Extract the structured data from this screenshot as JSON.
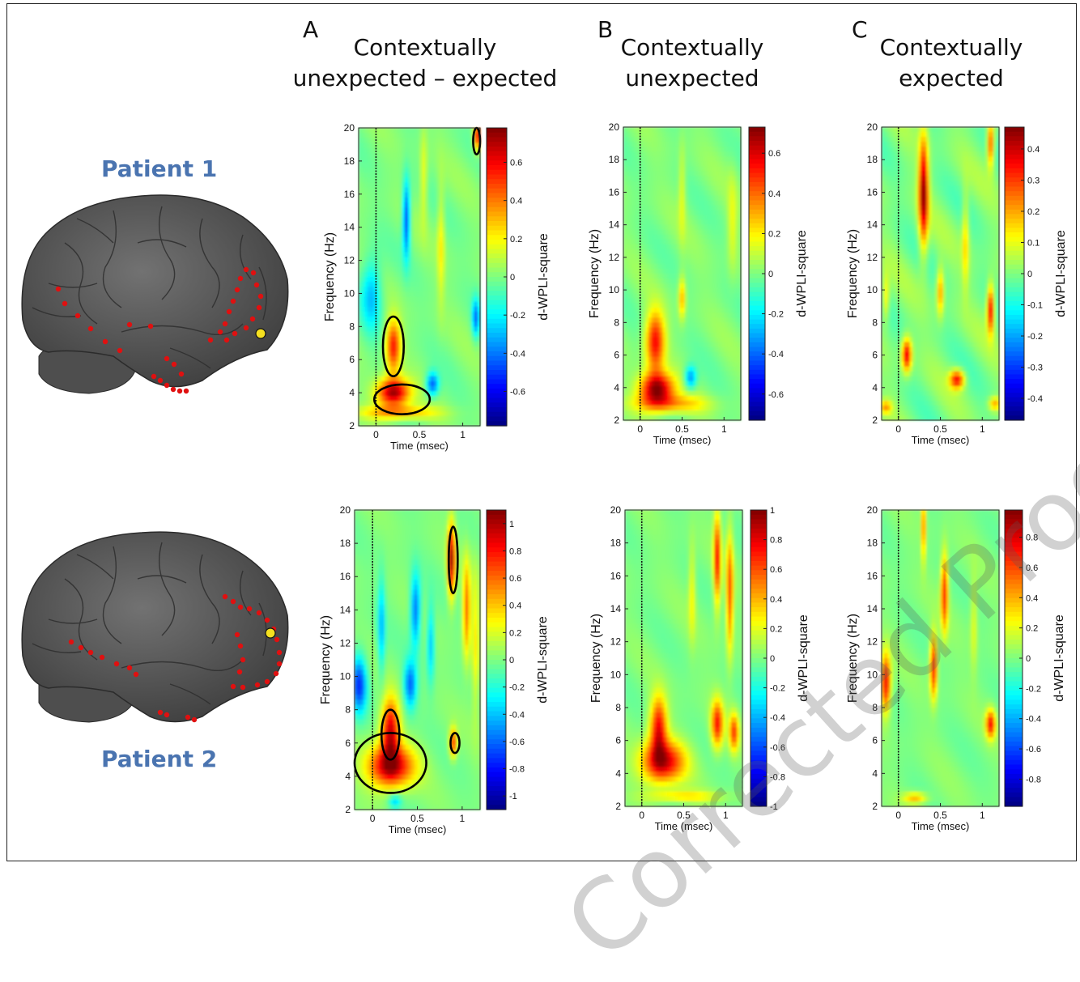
{
  "columns": [
    {
      "letter": "A",
      "title": "Contextually\nunexpected – expected"
    },
    {
      "letter": "B",
      "title": "Contextually\nunexpected"
    },
    {
      "letter": "C",
      "title": "Contextually\nexpected"
    }
  ],
  "patients": [
    "Patient 1",
    "Patient 2"
  ],
  "watermark": "Corrected Proof",
  "colors": {
    "patient_label": "#4a74b0",
    "electrode": "#e01010",
    "seed": "#f5e020",
    "brain": "#5a5a5a"
  },
  "chart_data": [
    {
      "type": "heatmap",
      "panel": "A1",
      "xlabel": "Time (msec)",
      "ylabel": "Frequency (Hz)",
      "colorbar_label": "d-WPLI-square",
      "xticks": [
        0,
        0.5,
        1
      ],
      "yticks": [
        2,
        4,
        6,
        8,
        10,
        12,
        14,
        16,
        18,
        20
      ],
      "xlim": [
        -0.2,
        1.2
      ],
      "ylim": [
        2,
        20
      ],
      "cbar_ticks": [
        0.6,
        0.4,
        0.2,
        0,
        -0.2,
        -0.4,
        -0.6
      ],
      "cbar_range": [
        -0.78,
        0.78
      ],
      "stimulus_line_x": 0,
      "blobs": [
        [
          0.2,
          4.0,
          0.13,
          0.6,
          0.75
        ],
        [
          0.2,
          6.8,
          0.06,
          1.1,
          0.55
        ],
        [
          0.25,
          2.8,
          0.3,
          0.3,
          0.35
        ],
        [
          0.35,
          14.5,
          0.03,
          1.6,
          -0.5
        ],
        [
          0.65,
          4.5,
          0.05,
          0.5,
          -0.45
        ],
        [
          1.15,
          8.5,
          0.03,
          0.8,
          -0.4
        ],
        [
          1.17,
          19.5,
          0.03,
          0.6,
          0.6
        ],
        [
          -0.05,
          10,
          0.08,
          1.5,
          -0.3
        ],
        [
          0.75,
          13,
          0.03,
          2.5,
          0.2
        ],
        [
          0.55,
          17,
          0.03,
          2.0,
          0.18
        ]
      ],
      "significant_clusters": [
        [
          0.3,
          3.6,
          0.32,
          0.9
        ],
        [
          0.2,
          6.8,
          0.12,
          1.8
        ],
        [
          1.16,
          19.2,
          0.04,
          0.8
        ]
      ]
    },
    {
      "type": "heatmap",
      "panel": "B1",
      "xlabel": "Time (msec)",
      "ylabel": "Frequency (Hz)",
      "colorbar_label": "d-WPLI-square",
      "xticks": [
        0,
        0.5,
        1
      ],
      "yticks": [
        2,
        4,
        6,
        8,
        10,
        12,
        14,
        16,
        18,
        20
      ],
      "xlim": [
        -0.2,
        1.2
      ],
      "ylim": [
        2,
        20
      ],
      "cbar_ticks": [
        0.6,
        0.4,
        0.2,
        0,
        -0.2,
        -0.4,
        -0.6
      ],
      "cbar_range": [
        -0.73,
        0.73
      ],
      "stimulus_line_x": 0,
      "blobs": [
        [
          0.2,
          3.9,
          0.14,
          0.7,
          0.72
        ],
        [
          0.18,
          6.8,
          0.08,
          1.3,
          0.55
        ],
        [
          0.5,
          9.5,
          0.03,
          0.9,
          0.3
        ],
        [
          0.6,
          4.6,
          0.05,
          0.5,
          -0.35
        ],
        [
          0.35,
          3.0,
          0.3,
          0.4,
          0.3
        ],
        [
          1.1,
          14,
          0.04,
          2.0,
          0.15
        ],
        [
          0.5,
          16,
          0.03,
          2.0,
          0.15
        ]
      ],
      "significant_clusters": []
    },
    {
      "type": "heatmap",
      "panel": "C1",
      "xlabel": "Time (msec)",
      "ylabel": "Frequency (Hz)",
      "colorbar_label": "d-WPLI-square",
      "xticks": [
        0,
        0.5,
        1
      ],
      "yticks": [
        2,
        4,
        6,
        8,
        10,
        12,
        14,
        16,
        18,
        20
      ],
      "xlim": [
        -0.2,
        1.2
      ],
      "ylim": [
        2,
        20
      ],
      "cbar_ticks": [
        0.4,
        0.3,
        0.2,
        0.1,
        0,
        -0.1,
        -0.2,
        -0.3,
        -0.4
      ],
      "cbar_range": [
        -0.47,
        0.47
      ],
      "stimulus_line_x": 0,
      "blobs": [
        [
          0.3,
          16.0,
          0.04,
          2.3,
          0.45
        ],
        [
          0.1,
          6.0,
          0.04,
          0.7,
          0.38
        ],
        [
          0.7,
          4.5,
          0.06,
          0.4,
          0.35
        ],
        [
          1.1,
          8.8,
          0.03,
          1.0,
          0.38
        ],
        [
          1.1,
          19,
          0.03,
          1.0,
          0.3
        ],
        [
          0.5,
          9.9,
          0.03,
          1.0,
          0.22
        ],
        [
          -0.15,
          9.5,
          0.03,
          1.0,
          0.15
        ],
        [
          0.8,
          13,
          0.03,
          2.0,
          0.15
        ],
        [
          1.15,
          3.0,
          0.05,
          0.3,
          0.2
        ],
        [
          -0.15,
          2.8,
          0.05,
          0.3,
          0.2
        ]
      ],
      "significant_clusters": []
    },
    {
      "type": "heatmap",
      "panel": "A2",
      "xlabel": "Time (msec)",
      "ylabel": "Frequency (Hz)",
      "colorbar_label": "d-WPLI-square",
      "xticks": [
        0,
        0.5,
        1
      ],
      "yticks": [
        2,
        4,
        6,
        8,
        10,
        12,
        14,
        16,
        18,
        20
      ],
      "xlim": [
        -0.2,
        1.2
      ],
      "ylim": [
        2,
        20
      ],
      "cbar_ticks": [
        1,
        0.8,
        0.6,
        0.4,
        0.2,
        0,
        -0.2,
        -0.4,
        -0.6,
        -0.8,
        -1
      ],
      "cbar_range": [
        -1.1,
        1.1
      ],
      "stimulus_line_x": 0,
      "blobs": [
        [
          0.2,
          4.6,
          0.18,
          0.9,
          1.0
        ],
        [
          0.2,
          6.8,
          0.07,
          1.3,
          0.9
        ],
        [
          0.88,
          17,
          0.03,
          1.5,
          1.0
        ],
        [
          1.05,
          14,
          0.03,
          2.0,
          0.6
        ],
        [
          0.9,
          6,
          0.03,
          0.6,
          0.7
        ],
        [
          -0.15,
          9.5,
          0.06,
          1.2,
          -0.7
        ],
        [
          0.48,
          14,
          0.04,
          1.5,
          -0.6
        ],
        [
          0.42,
          9.5,
          0.05,
          1.0,
          -0.6
        ],
        [
          0.65,
          12,
          0.03,
          1.6,
          -0.4
        ],
        [
          0.1,
          13,
          0.03,
          2.0,
          -0.4
        ],
        [
          0.25,
          2.5,
          0.05,
          0.3,
          -0.35
        ],
        [
          1.15,
          12,
          0.03,
          3.0,
          0.3
        ]
      ],
      "significant_clusters": [
        [
          0.2,
          4.8,
          0.4,
          1.8
        ],
        [
          0.2,
          6.5,
          0.1,
          1.5
        ],
        [
          0.9,
          17,
          0.05,
          2.0
        ],
        [
          0.92,
          6,
          0.05,
          0.6
        ]
      ]
    },
    {
      "type": "heatmap",
      "panel": "B2",
      "xlabel": "Time (msec)",
      "ylabel": "Frequency (Hz)",
      "colorbar_label": "d-WPLI-square",
      "xticks": [
        0,
        0.5,
        1
      ],
      "yticks": [
        2,
        4,
        6,
        8,
        10,
        12,
        14,
        16,
        18,
        20
      ],
      "xlim": [
        -0.2,
        1.2
      ],
      "ylim": [
        2,
        20
      ],
      "cbar_ticks": [
        1,
        0.8,
        0.6,
        0.4,
        0.2,
        0,
        -0.2,
        -0.4,
        -0.6,
        -0.8,
        -1
      ],
      "cbar_range": [
        -1.0,
        1.0
      ],
      "stimulus_line_x": 0,
      "blobs": [
        [
          0.25,
          4.7,
          0.18,
          0.9,
          0.85
        ],
        [
          0.2,
          6.8,
          0.07,
          1.3,
          0.75
        ],
        [
          0.9,
          17,
          0.03,
          2.0,
          0.7
        ],
        [
          1.05,
          15,
          0.03,
          2.5,
          0.6
        ],
        [
          0.9,
          7,
          0.05,
          1.0,
          0.7
        ],
        [
          1.1,
          6.5,
          0.04,
          0.8,
          0.6
        ],
        [
          0.6,
          15,
          0.03,
          2.0,
          0.25
        ],
        [
          0.5,
          2.6,
          0.3,
          0.25,
          0.3
        ]
      ],
      "significant_clusters": []
    },
    {
      "type": "heatmap",
      "panel": "C2",
      "xlabel": "Time (msec)",
      "ylabel": "Frequency (Hz)",
      "colorbar_label": "d-WPLI-square",
      "xticks": [
        0,
        0.5,
        1
      ],
      "yticks": [
        2,
        4,
        6,
        8,
        10,
        12,
        14,
        16,
        18,
        20
      ],
      "xlim": [
        -0.2,
        1.2
      ],
      "ylim": [
        2,
        20
      ],
      "cbar_ticks": [
        0.8,
        0.6,
        0.4,
        0.2,
        0,
        -0.2,
        -0.4,
        -0.6,
        -0.8
      ],
      "cbar_range": [
        -0.98,
        0.98
      ],
      "stimulus_line_x": 0,
      "blobs": [
        [
          -0.15,
          9.5,
          0.04,
          1.2,
          0.8
        ],
        [
          0.42,
          10.5,
          0.03,
          1.3,
          0.75
        ],
        [
          0.55,
          15,
          0.03,
          1.6,
          0.7
        ],
        [
          1.1,
          7,
          0.04,
          0.6,
          0.7
        ],
        [
          0.3,
          19,
          0.02,
          1.5,
          0.5
        ],
        [
          0.2,
          2.5,
          0.1,
          0.25,
          0.4
        ],
        [
          0.9,
          13,
          0.03,
          2.0,
          0.2
        ]
      ],
      "significant_clusters": []
    }
  ]
}
